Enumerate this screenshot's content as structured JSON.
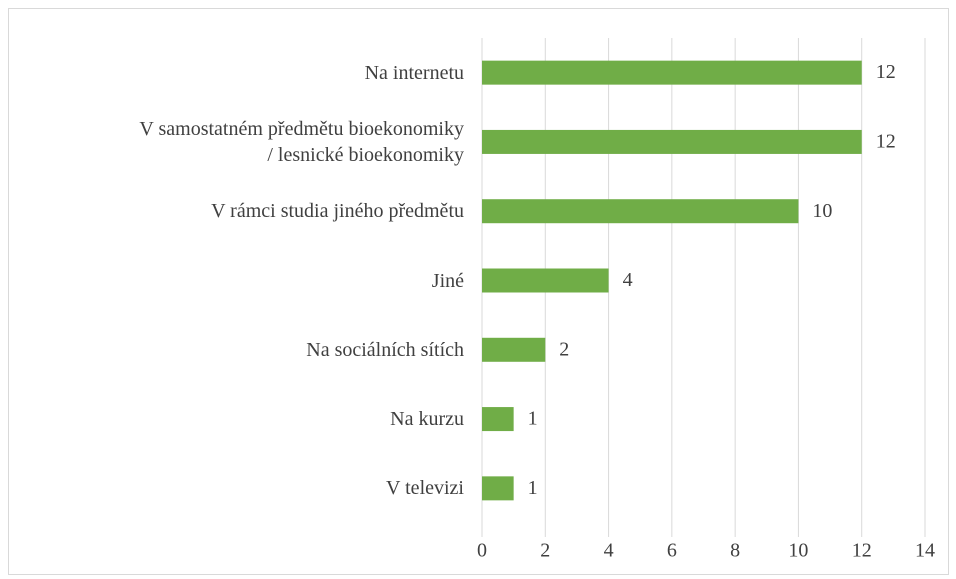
{
  "chart_data": {
    "type": "bar",
    "orientation": "horizontal",
    "categories": [
      "Na internetu",
      "V samostatném předmětu bioekonomiky\n/ lesnické bioekonomiky",
      "V rámci studia jiného předmětu",
      "Jiné",
      "Na sociálních sítích",
      "Na kurzu",
      "V televizi"
    ],
    "values": [
      12,
      12,
      10,
      4,
      2,
      1,
      1
    ],
    "color": "#70ad47",
    "xlim": [
      0,
      14
    ],
    "xticks": [
      0,
      2,
      4,
      6,
      8,
      10,
      12,
      14
    ],
    "grid": true
  }
}
